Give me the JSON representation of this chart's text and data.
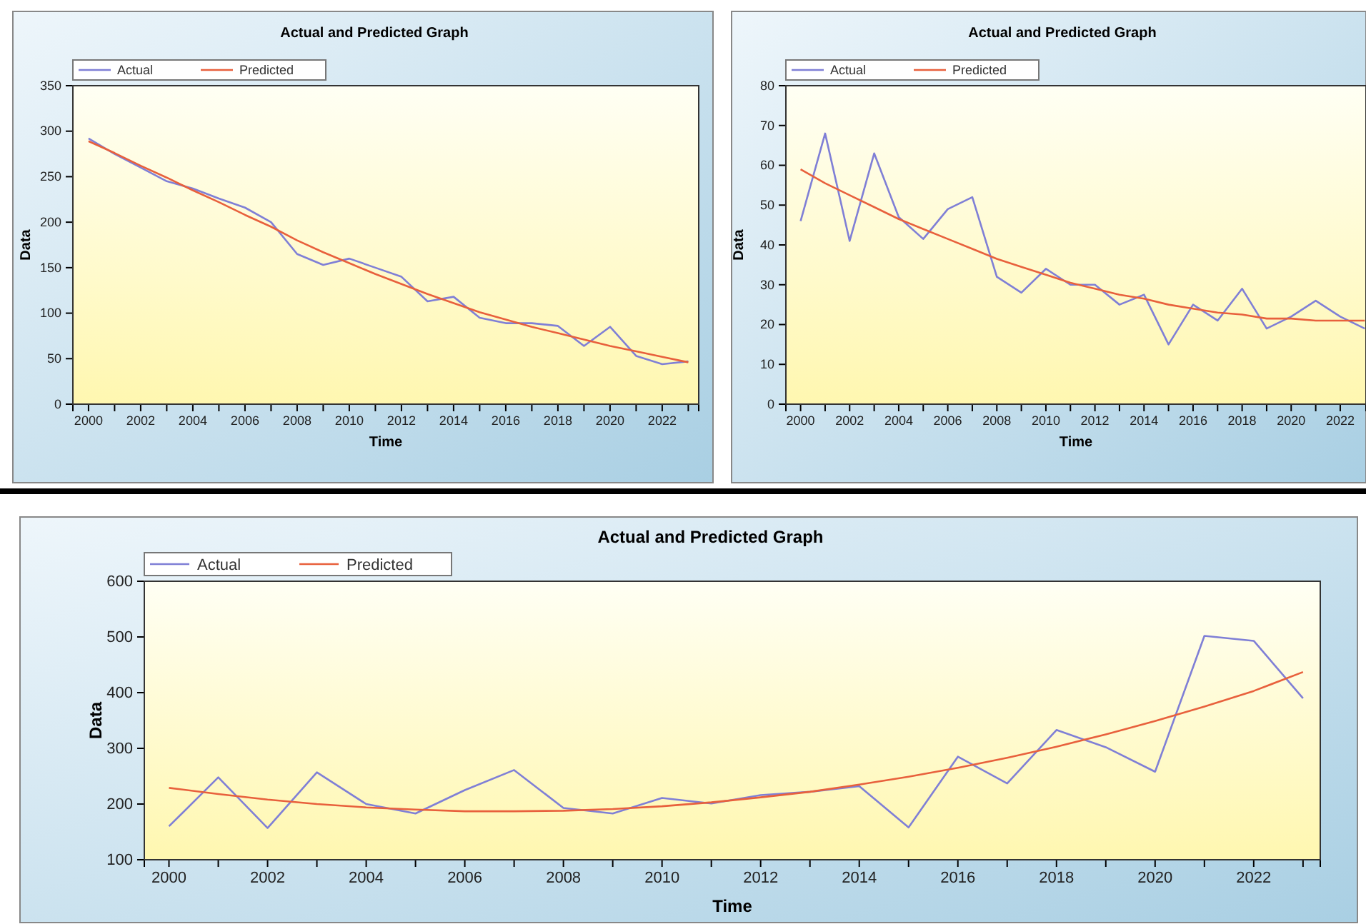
{
  "chart_data": [
    {
      "type": "line",
      "title": "Actual and Predicted Graph",
      "xlabel": "Time",
      "ylabel": "Data",
      "legend": "top left",
      "xlim": [
        1999.4,
        2023.4
      ],
      "ylim": [
        0,
        350
      ],
      "xticks": [
        2000,
        {
          "value": 2001,
          "label": null
        },
        2002,
        {
          "value": 2003,
          "label": null
        },
        2004,
        {
          "value": 2005,
          "label": null
        },
        2006,
        {
          "value": 2007,
          "label": null
        },
        2008,
        {
          "value": 2009,
          "label": null
        },
        2010,
        {
          "value": 2011,
          "label": null
        },
        2012,
        {
          "value": 2013,
          "label": null
        },
        2014,
        {
          "value": 2015,
          "label": null
        },
        2016,
        {
          "value": 2017,
          "label": null
        },
        2018,
        {
          "value": 2019,
          "label": null
        },
        2020,
        {
          "value": 2021,
          "label": null
        },
        2022,
        {
          "value": 2023,
          "label": null
        }
      ],
      "yticks": [
        0,
        50,
        100,
        150,
        200,
        250,
        300,
        350
      ],
      "x": [
        2000,
        2001,
        2002,
        2003,
        2004,
        2005,
        2006,
        2007,
        2008,
        2009,
        2010,
        2011,
        2012,
        2013,
        2014,
        2015,
        2016,
        2017,
        2018,
        2019,
        2020,
        2021,
        2022,
        2023
      ],
      "series": [
        {
          "name": "Actual",
          "color": "#7f7fd6",
          "values": [
            292,
            275,
            260,
            245,
            237,
            226,
            216,
            200,
            165,
            153,
            160,
            150,
            140,
            113,
            118,
            95,
            89,
            89,
            86,
            64,
            85,
            53,
            44,
            47
          ]
        },
        {
          "name": "Predicted",
          "color": "#e8603c",
          "values": [
            289,
            276,
            262,
            249,
            235,
            222,
            208,
            195,
            180,
            167,
            155,
            143,
            132,
            121,
            111,
            101,
            93,
            85,
            78,
            71,
            64,
            58,
            52,
            46
          ]
        }
      ]
    },
    {
      "type": "line",
      "title": "Actual and Predicted Graph",
      "xlabel": "Time",
      "ylabel": "Data",
      "legend": "top left",
      "xlim": [
        1999.4,
        2023.05
      ],
      "ylim": [
        0,
        80
      ],
      "xticks": [
        2000,
        {
          "value": 2001,
          "label": null
        },
        2002,
        {
          "value": 2003,
          "label": null
        },
        2004,
        {
          "value": 2005,
          "label": null
        },
        2006,
        {
          "value": 2007,
          "label": null
        },
        2008,
        {
          "value": 2009,
          "label": null
        },
        2010,
        {
          "value": 2011,
          "label": null
        },
        2012,
        {
          "value": 2013,
          "label": null
        },
        2014,
        {
          "value": 2015,
          "label": null
        },
        2016,
        {
          "value": 2017,
          "label": null
        },
        2018,
        {
          "value": 2019,
          "label": null
        },
        2020,
        {
          "value": 2021,
          "label": null
        },
        2022
      ],
      "yticks": [
        0,
        10,
        20,
        30,
        40,
        50,
        60,
        70,
        80
      ],
      "x": [
        2000,
        2001,
        2002,
        2003,
        2004,
        2005,
        2006,
        2007,
        2008,
        2009,
        2010,
        2011,
        2012,
        2013,
        2014,
        2015,
        2016,
        2017,
        2018,
        2019,
        2020,
        2021,
        2022,
        2023
      ],
      "series": [
        {
          "name": "Actual",
          "color": "#7f7fd6",
          "values": [
            46,
            68,
            41,
            63,
            47,
            41.5,
            49,
            52,
            32,
            28,
            34,
            30,
            30,
            25,
            27.5,
            15,
            25,
            21,
            29,
            19,
            22,
            26,
            22,
            19
          ]
        },
        {
          "name": "Predicted",
          "color": "#e8603c",
          "values": [
            59,
            55.5,
            52.5,
            49.5,
            46.5,
            44,
            41.5,
            39,
            36.5,
            34.5,
            32.5,
            30.5,
            29,
            27.5,
            26.5,
            25,
            24,
            23,
            22.5,
            21.5,
            21.5,
            21,
            21,
            21
          ]
        }
      ]
    },
    {
      "type": "line",
      "title": "Actual and Predicted Graph",
      "xlabel": "Time",
      "ylabel": "Data",
      "legend": "top left",
      "xlim": [
        1999.5,
        2023.35
      ],
      "ylim": [
        100,
        600
      ],
      "xticks": [
        2000,
        {
          "value": 2001,
          "label": null
        },
        2002,
        {
          "value": 2003,
          "label": null
        },
        2004,
        {
          "value": 2005,
          "label": null
        },
        2006,
        {
          "value": 2007,
          "label": null
        },
        2008,
        {
          "value": 2009,
          "label": null
        },
        2010,
        {
          "value": 2011,
          "label": null
        },
        2012,
        {
          "value": 2013,
          "label": null
        },
        2014,
        {
          "value": 2015,
          "label": null
        },
        2016,
        {
          "value": 2017,
          "label": null
        },
        2018,
        {
          "value": 2019,
          "label": null
        },
        2020,
        {
          "value": 2021,
          "label": null
        },
        2022,
        {
          "value": 2023,
          "label": null
        }
      ],
      "yticks": [
        100,
        200,
        300,
        400,
        500,
        600
      ],
      "x": [
        2000,
        2001,
        2002,
        2003,
        2004,
        2005,
        2006,
        2007,
        2008,
        2009,
        2010,
        2011,
        2012,
        2013,
        2014,
        2015,
        2016,
        2017,
        2018,
        2019,
        2020,
        2021,
        2022,
        2023
      ],
      "series": [
        {
          "name": "Actual",
          "color": "#7f7fd6",
          "values": [
            160,
            248,
            157,
            257,
            200,
            183,
            225,
            261,
            193,
            183,
            211,
            201,
            216,
            222,
            232,
            158,
            285,
            237,
            333,
            302,
            258,
            502,
            493,
            390
          ]
        },
        {
          "name": "Predicted",
          "color": "#e8603c",
          "values": [
            229,
            218,
            208,
            200,
            194,
            190,
            187,
            187,
            188,
            191,
            196,
            203,
            212,
            222,
            235,
            249,
            265,
            283,
            303,
            325,
            349,
            375,
            403,
            437
          ]
        }
      ]
    }
  ]
}
